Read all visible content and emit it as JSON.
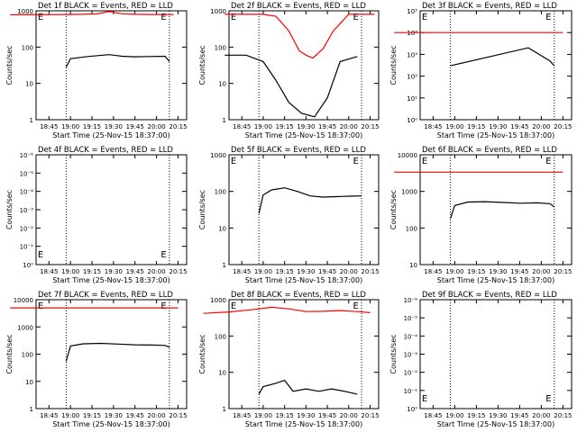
{
  "chart_data": [
    {
      "type": "line",
      "title": "Det 1f BLACK = Events, RED = LLD",
      "xlabel": "Start Time (25-Nov-15 18:37:00)",
      "ylabel": "Counts/sec",
      "x_tick_labels": [
        "18:45",
        "19:00",
        "19:15",
        "19:30",
        "19:45",
        "20:00",
        "20:15"
      ],
      "y_tick_labels": [
        "1",
        "10",
        "100",
        "1000"
      ],
      "ylim": [
        1,
        1000
      ],
      "markers": [
        "E",
        "E"
      ],
      "series": [
        {
          "name": "LLD",
          "color": "#ff0000",
          "x": [
            18.3,
            19.0,
            19.3,
            19.45,
            19.6,
            19.75,
            19.95,
            20.2
          ],
          "values": [
            780,
            790,
            820,
            950,
            830,
            800,
            790,
            790
          ]
        },
        {
          "name": "Events",
          "color": "#000000",
          "x": [
            18.95,
            19.0,
            19.2,
            19.45,
            19.6,
            19.75,
            19.9,
            20.1,
            20.15
          ],
          "values": [
            28,
            48,
            55,
            62,
            56,
            54,
            55,
            56,
            40
          ]
        }
      ]
    },
    {
      "type": "line",
      "title": "Det 2f BLACK = Events, RED = LLD",
      "xlabel": "Start Time (25-Nov-15 18:37:00)",
      "ylabel": "Counts/sec",
      "x_tick_labels": [
        "18:45",
        "19:00",
        "19:15",
        "19:30",
        "19:45",
        "20:00",
        "20:15"
      ],
      "y_tick_labels": [
        "1",
        "10",
        "100",
        "1000"
      ],
      "ylim": [
        1,
        1000
      ],
      "markers": [
        "E",
        "E"
      ],
      "series": [
        {
          "name": "LLD",
          "color": "#ff0000",
          "x": [
            18.55,
            18.8,
            19.0,
            19.15,
            19.3,
            19.42,
            19.5,
            19.58,
            19.7,
            19.82,
            20.0,
            20.3
          ],
          "values": [
            800,
            800,
            800,
            700,
            280,
            80,
            60,
            50,
            90,
            280,
            800,
            800
          ]
        },
        {
          "name": "Events",
          "color": "#000000",
          "x": [
            18.55,
            18.8,
            19.0,
            19.15,
            19.3,
            19.45,
            19.6,
            19.75,
            19.9,
            20.1
          ],
          "values": [
            60,
            60,
            40,
            12,
            3,
            1.5,
            1.2,
            4,
            40,
            55
          ]
        }
      ]
    },
    {
      "type": "line",
      "title": "Det 3f BLACK = Events, RED = LLD",
      "xlabel": "Start Time (25-Nov-15 18:37:00)",
      "ylabel": "Counts/sec",
      "x_tick_labels": [
        "18:45",
        "19:00",
        "19:15",
        "19:30",
        "19:45",
        "20:00",
        "20:15"
      ],
      "y_tick_labels": [
        "10⁰",
        "10¹",
        "10²",
        "10³",
        "10⁴",
        "10⁵"
      ],
      "ylim": [
        1,
        100000
      ],
      "markers": [
        "E",
        "E"
      ],
      "series": [
        {
          "name": "LLD",
          "color": "#ff0000",
          "x": [
            18.3,
            20.25
          ],
          "values": [
            10000,
            10000
          ]
        },
        {
          "name": "Events",
          "color": "#000000",
          "x": [
            18.95,
            19.85,
            20.1,
            20.15
          ],
          "values": [
            300,
            2000,
            500,
            300
          ]
        }
      ]
    },
    {
      "type": "line",
      "title": "Det 4f BLACK = Events, RED = LLD",
      "xlabel": "Start Time (25-Nov-15 18:37:00)",
      "ylabel": "Counts/sec",
      "x_tick_labels": [
        "18:45",
        "19:00",
        "19:15",
        "19:30",
        "19:45",
        "20:00",
        "20:15"
      ],
      "y_tick_labels": [
        "10⁰",
        "10⁻¹",
        "10⁻²",
        "10⁻³",
        "10⁻⁴",
        "10⁻⁵",
        "10⁻⁶"
      ],
      "ylim": [
        1e-06,
        1
      ],
      "markers": [
        "E",
        "E"
      ],
      "series": []
    },
    {
      "type": "line",
      "title": "Det 5f BLACK = Events, RED = LLD",
      "xlabel": "Start Time (25-Nov-15 18:37:00)",
      "ylabel": "Counts/sec",
      "x_tick_labels": [
        "18:45",
        "19:00",
        "19:15",
        "19:30",
        "19:45",
        "20:00",
        "20:15"
      ],
      "y_tick_labels": [
        "1",
        "10",
        "100",
        "1000"
      ],
      "ylim": [
        1,
        1000
      ],
      "markers": [
        "E",
        "E"
      ],
      "series": [
        {
          "name": "Events",
          "color": "#000000",
          "x": [
            18.95,
            19.0,
            19.1,
            19.25,
            19.4,
            19.55,
            19.7,
            19.85,
            20.0,
            20.15
          ],
          "values": [
            25,
            80,
            110,
            125,
            100,
            75,
            70,
            72,
            74,
            75
          ]
        }
      ]
    },
    {
      "type": "line",
      "title": "Det 6f BLACK = Events, RED = LLD",
      "xlabel": "Start Time (25-Nov-15 18:37:00)",
      "ylabel": "Counts/sec",
      "x_tick_labels": [
        "18:45",
        "19:00",
        "19:15",
        "19:30",
        "19:45",
        "20:00",
        "20:15"
      ],
      "y_tick_labels": [
        "10",
        "100",
        "1000",
        "10000"
      ],
      "ylim": [
        5,
        10000
      ],
      "markers": [
        "E",
        "E"
      ],
      "series": [
        {
          "name": "LLD",
          "color": "#ff0000",
          "x": [
            18.3,
            20.25
          ],
          "values": [
            3000,
            3000
          ]
        },
        {
          "name": "Events",
          "color": "#000000",
          "x": [
            18.95,
            19.0,
            19.15,
            19.35,
            19.55,
            19.75,
            19.95,
            20.1,
            20.15
          ],
          "values": [
            120,
            300,
            380,
            390,
            370,
            350,
            360,
            340,
            270
          ]
        }
      ]
    },
    {
      "type": "line",
      "title": "Det 7f BLACK = Events, RED = LLD",
      "xlabel": "Start Time (25-Nov-15 18:37:00)",
      "ylabel": "Counts/sec",
      "x_tick_labels": [
        "18:45",
        "19:00",
        "19:15",
        "19:30",
        "19:45",
        "20:00",
        "20:15"
      ],
      "y_tick_labels": [
        "1",
        "10",
        "100",
        "1000",
        "10000"
      ],
      "ylim": [
        1,
        10000
      ],
      "markers": [
        "E",
        "E"
      ],
      "series": [
        {
          "name": "LLD",
          "color": "#ff0000",
          "x": [
            18.3,
            20.25
          ],
          "values": [
            5000,
            5000
          ]
        },
        {
          "name": "Events",
          "color": "#000000",
          "x": [
            18.95,
            19.0,
            19.15,
            19.35,
            19.55,
            19.75,
            19.95,
            20.1,
            20.15
          ],
          "values": [
            55,
            200,
            240,
            250,
            235,
            220,
            215,
            210,
            180
          ]
        }
      ]
    },
    {
      "type": "line",
      "title": "Det 8f BLACK = Events, RED = LLD",
      "xlabel": "Start Time (25-Nov-15 18:37:00)",
      "ylabel": "Counts/sec",
      "x_tick_labels": [
        "18:45",
        "19:00",
        "19:15",
        "19:30",
        "19:45",
        "20:00",
        "20:15"
      ],
      "y_tick_labels": [
        "1",
        "10",
        "100",
        "1000"
      ],
      "ylim": [
        1,
        1000
      ],
      "markers": [
        "E",
        "E"
      ],
      "series": [
        {
          "name": "LLD",
          "color": "#ff0000",
          "x": [
            18.3,
            18.6,
            18.9,
            19.1,
            19.3,
            19.5,
            19.7,
            19.9,
            20.1,
            20.25
          ],
          "values": [
            420,
            460,
            540,
            620,
            560,
            470,
            480,
            500,
            470,
            440
          ]
        },
        {
          "name": "Events",
          "color": "#000000",
          "x": [
            18.95,
            19.0,
            19.15,
            19.25,
            19.35,
            19.5,
            19.65,
            19.8,
            19.95,
            20.1
          ],
          "values": [
            2.5,
            4,
            5,
            6,
            3,
            3.5,
            3,
            3.5,
            3,
            2.5
          ]
        }
      ]
    },
    {
      "type": "line",
      "title": "Det 9f BLACK = Events, RED = LLD",
      "xlabel": "Start Time (25-Nov-15 18:37:00)",
      "ylabel": "Counts/sec",
      "x_tick_labels": [
        "18:45",
        "19:00",
        "19:15",
        "19:30",
        "19:45",
        "20:00",
        "20:15"
      ],
      "y_tick_labels": [
        "10⁰",
        "10⁻¹",
        "10⁻²",
        "10⁻³",
        "10⁻⁴",
        "10⁻⁵",
        "10⁻⁶"
      ],
      "ylim": [
        1e-06,
        1
      ],
      "markers": [
        "E",
        "E"
      ],
      "series": []
    }
  ]
}
